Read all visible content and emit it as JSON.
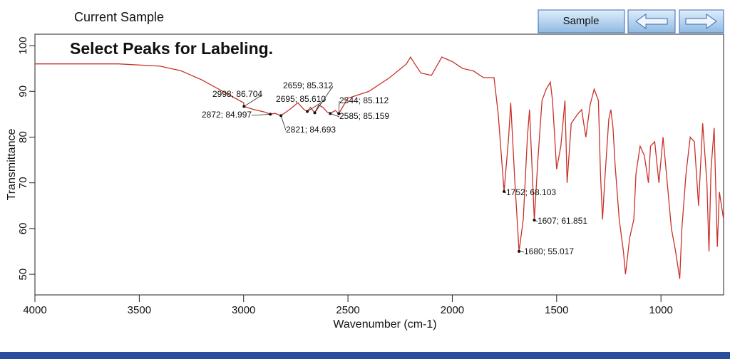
{
  "window_title": "Current Sample",
  "button": "Sample",
  "chart_data": {
    "type": "line",
    "title": "Select Peaks for Labeling.",
    "xlabel": "Wavenumber (cm-1)",
    "ylabel": "Transmittance",
    "xlim": [
      4000,
      700
    ],
    "ylim": [
      45.5,
      102.5
    ],
    "xticks": [
      4000,
      3500,
      3000,
      2500,
      2000,
      1500,
      1000
    ],
    "yticks": [
      100,
      90,
      80,
      70,
      60,
      50
    ],
    "x": [
      4000,
      3800,
      3600,
      3400,
      3300,
      3200,
      3100,
      3000,
      2998,
      2950,
      2900,
      2872,
      2850,
      2821,
      2780,
      2740,
      2710,
      2695,
      2680,
      2659,
      2640,
      2620,
      2600,
      2585,
      2560,
      2544,
      2520,
      2500,
      2400,
      2300,
      2220,
      2200,
      2180,
      2150,
      2100,
      2050,
      2000,
      1950,
      1900,
      1850,
      1800,
      1780,
      1752,
      1730,
      1720,
      1700,
      1680,
      1660,
      1640,
      1630,
      1607,
      1590,
      1570,
      1550,
      1530,
      1520,
      1500,
      1480,
      1460,
      1450,
      1430,
      1400,
      1380,
      1360,
      1340,
      1320,
      1300,
      1290,
      1280,
      1270,
      1250,
      1240,
      1230,
      1220,
      1200,
      1180,
      1170,
      1150,
      1130,
      1120,
      1100,
      1080,
      1060,
      1050,
      1030,
      1010,
      990,
      970,
      950,
      930,
      910,
      900,
      880,
      860,
      840,
      820,
      800,
      780,
      770,
      760,
      745,
      730,
      720,
      700
    ],
    "series": [
      {
        "name": "Current Sample",
        "color": "#c8322a",
        "values": [
          96,
          96,
          96,
          95.5,
          94.5,
          92.5,
          90,
          87.5,
          86.7,
          86,
          85.5,
          85,
          85.2,
          84.7,
          86,
          87.5,
          86,
          85.6,
          86.5,
          85.3,
          87,
          86.5,
          85.5,
          85.2,
          85.8,
          85.1,
          87,
          88.5,
          90,
          93,
          96,
          97.5,
          96,
          94,
          93.5,
          97.5,
          96.5,
          95,
          94.5,
          93,
          93,
          85,
          68.1,
          80,
          87.5,
          70,
          55,
          62,
          80,
          86,
          61.9,
          75,
          88,
          90.5,
          92,
          88,
          73,
          78,
          88,
          70,
          83,
          85,
          86,
          80,
          87,
          90.5,
          88,
          72,
          62,
          70,
          84,
          86,
          82,
          74,
          62,
          55,
          50,
          58,
          62,
          72,
          78,
          76,
          70,
          78,
          79,
          70,
          80,
          70,
          60,
          55,
          49,
          60,
          72,
          80,
          79,
          65,
          83,
          70,
          55,
          73,
          82,
          56,
          68,
          62
        ]
      }
    ],
    "annotations": [
      {
        "x": 2998,
        "y": 86.704,
        "label": "2998; 86.704"
      },
      {
        "x": 2872,
        "y": 84.997,
        "label": "2872; 84.997"
      },
      {
        "x": 2821,
        "y": 84.693,
        "label": "2821; 84.693"
      },
      {
        "x": 2659,
        "y": 85.312,
        "label": "2659; 85.312"
      },
      {
        "x": 2695,
        "y": 85.61,
        "label": "2695; 85.610"
      },
      {
        "x": 2544,
        "y": 85.112,
        "label": "2544; 85.112"
      },
      {
        "x": 2585,
        "y": 85.159,
        "label": "2585; 85.159"
      },
      {
        "x": 1752,
        "y": 68.103,
        "label": "1752; 68.103"
      },
      {
        "x": 1607,
        "y": 61.851,
        "label": "1607; 61.851"
      },
      {
        "x": 1680,
        "y": 55.017,
        "label": "1680; 55.017"
      }
    ]
  }
}
